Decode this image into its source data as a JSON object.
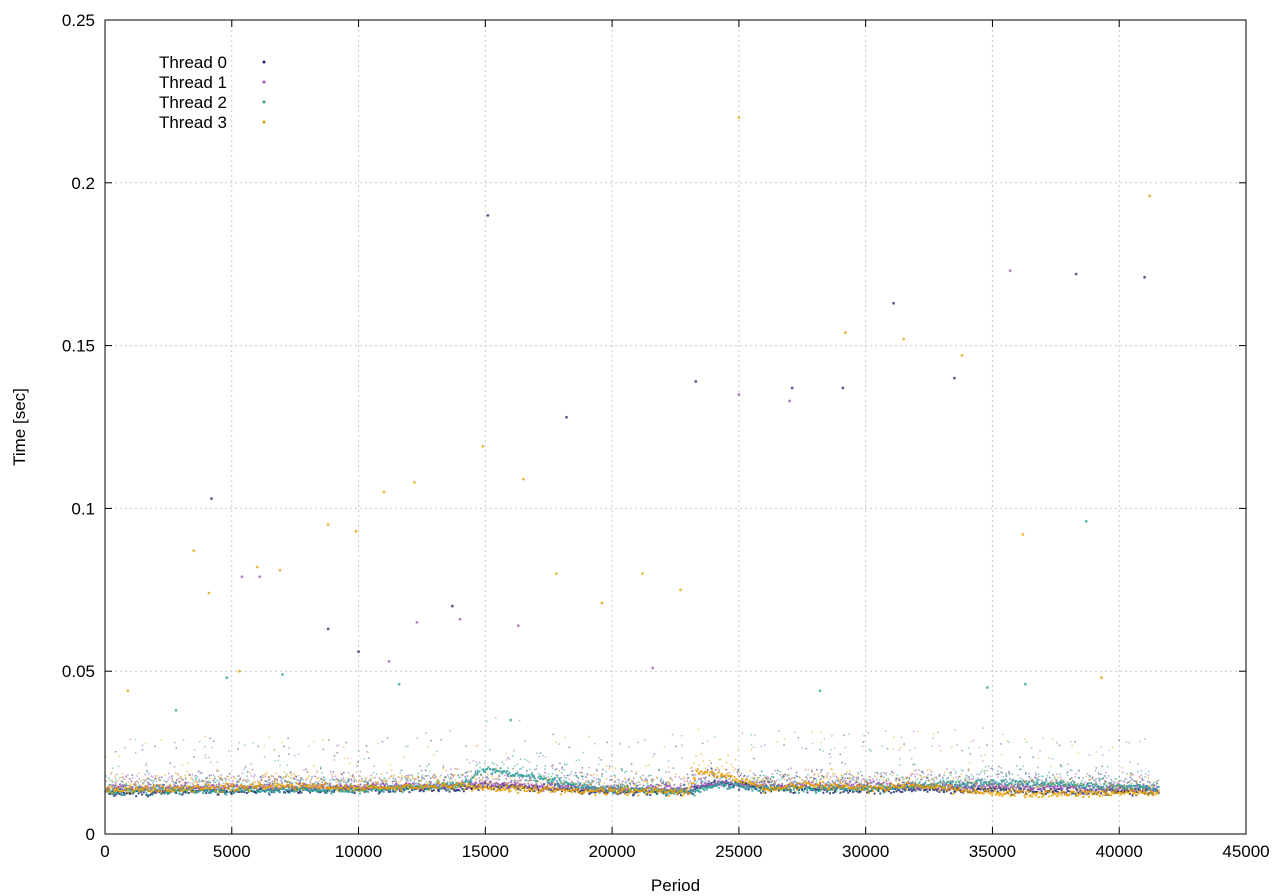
{
  "chart_data": {
    "type": "scatter",
    "title": "",
    "xlabel": "Period",
    "ylabel": "Time [sec]",
    "xlim": [
      0,
      45000
    ],
    "ylim": [
      0,
      0.25
    ],
    "x_ticks": [
      0,
      5000,
      10000,
      15000,
      20000,
      25000,
      30000,
      35000,
      40000,
      45000
    ],
    "y_ticks": [
      0,
      0.05,
      0.1,
      0.15,
      0.2,
      0.25
    ],
    "x_tick_labels": [
      "0",
      "5000",
      "10000",
      "15000",
      "20000",
      "25000",
      "30000",
      "35000",
      "40000",
      "45000"
    ],
    "y_tick_labels": [
      "0",
      "0.05",
      "0.1",
      "0.15",
      "0.2",
      "0.25"
    ],
    "grid": true,
    "legend_position": "top-left",
    "x_range_of_data": [
      0,
      41500
    ],
    "series": [
      {
        "name": "Thread 0",
        "color": "#1a2b6e",
        "typical_band": [
          [
            0,
            0.0125
          ],
          [
            5000,
            0.0135
          ],
          [
            10000,
            0.0135
          ],
          [
            14000,
            0.014
          ],
          [
            15000,
            0.015
          ],
          [
            20000,
            0.013
          ],
          [
            23000,
            0.013
          ],
          [
            24000,
            0.016
          ],
          [
            26000,
            0.014
          ],
          [
            30000,
            0.0135
          ],
          [
            35000,
            0.0135
          ],
          [
            40000,
            0.013
          ],
          [
            41500,
            0.013
          ]
        ],
        "outliers": [
          [
            4200,
            0.103
          ],
          [
            8800,
            0.063
          ],
          [
            10000,
            0.056
          ],
          [
            13700,
            0.07
          ],
          [
            15100,
            0.19
          ],
          [
            18200,
            0.128
          ],
          [
            23300,
            0.139
          ],
          [
            27100,
            0.137
          ],
          [
            29100,
            0.137
          ],
          [
            31100,
            0.163
          ],
          [
            33500,
            0.14
          ],
          [
            38300,
            0.172
          ],
          [
            41000,
            0.171
          ]
        ]
      },
      {
        "name": "Thread 1",
        "color": "#9b59b6",
        "typical_band": [
          [
            0,
            0.014
          ],
          [
            5000,
            0.0145
          ],
          [
            10000,
            0.0145
          ],
          [
            14000,
            0.015
          ],
          [
            15000,
            0.015
          ],
          [
            20000,
            0.014
          ],
          [
            23000,
            0.014
          ],
          [
            24000,
            0.0155
          ],
          [
            26000,
            0.015
          ],
          [
            30000,
            0.015
          ],
          [
            35000,
            0.0145
          ],
          [
            40000,
            0.014
          ],
          [
            41500,
            0.014
          ]
        ],
        "outliers": [
          [
            5400,
            0.079
          ],
          [
            6100,
            0.079
          ],
          [
            11200,
            0.053
          ],
          [
            12300,
            0.065
          ],
          [
            14000,
            0.066
          ],
          [
            16300,
            0.064
          ],
          [
            21600,
            0.051
          ],
          [
            25000,
            0.135
          ],
          [
            27000,
            0.133
          ],
          [
            35700,
            0.173
          ]
        ]
      },
      {
        "name": "Thread 2",
        "color": "#2aa198",
        "typical_band": [
          [
            0,
            0.013
          ],
          [
            5000,
            0.0135
          ],
          [
            10000,
            0.0135
          ],
          [
            14000,
            0.015
          ],
          [
            15000,
            0.02
          ],
          [
            17000,
            0.017
          ],
          [
            19000,
            0.014
          ],
          [
            23000,
            0.013
          ],
          [
            24000,
            0.015
          ],
          [
            26000,
            0.014
          ],
          [
            30000,
            0.014
          ],
          [
            35000,
            0.016
          ],
          [
            38000,
            0.015
          ],
          [
            41500,
            0.014
          ]
        ],
        "outliers": [
          [
            2800,
            0.038
          ],
          [
            4800,
            0.048
          ],
          [
            7000,
            0.049
          ],
          [
            11600,
            0.046
          ],
          [
            16000,
            0.035
          ],
          [
            28200,
            0.044
          ],
          [
            34800,
            0.045
          ],
          [
            36300,
            0.046
          ],
          [
            38700,
            0.096
          ]
        ]
      },
      {
        "name": "Thread 3",
        "color": "#e69f00",
        "typical_band": [
          [
            0,
            0.0135
          ],
          [
            3000,
            0.014
          ],
          [
            5000,
            0.014
          ],
          [
            7000,
            0.015
          ],
          [
            10000,
            0.014
          ],
          [
            14000,
            0.015
          ],
          [
            15000,
            0.014
          ],
          [
            20000,
            0.013
          ],
          [
            23000,
            0.013
          ],
          [
            23300,
            0.019
          ],
          [
            24500,
            0.018
          ],
          [
            26000,
            0.014
          ],
          [
            28000,
            0.015
          ],
          [
            30000,
            0.014
          ],
          [
            32000,
            0.015
          ],
          [
            35000,
            0.0125
          ],
          [
            38000,
            0.0125
          ],
          [
            41500,
            0.0125
          ]
        ],
        "outliers": [
          [
            900,
            0.044
          ],
          [
            3500,
            0.087
          ],
          [
            4100,
            0.074
          ],
          [
            5300,
            0.05
          ],
          [
            6000,
            0.082
          ],
          [
            6900,
            0.081
          ],
          [
            8800,
            0.095
          ],
          [
            9900,
            0.093
          ],
          [
            11000,
            0.105
          ],
          [
            12200,
            0.108
          ],
          [
            14900,
            0.119
          ],
          [
            16500,
            0.109
          ],
          [
            17800,
            0.08
          ],
          [
            19600,
            0.071
          ],
          [
            21200,
            0.08
          ],
          [
            22700,
            0.075
          ],
          [
            25000,
            0.22
          ],
          [
            29200,
            0.154
          ],
          [
            31500,
            0.152
          ],
          [
            33800,
            0.147
          ],
          [
            36200,
            0.092
          ],
          [
            39300,
            0.048
          ],
          [
            41200,
            0.196
          ]
        ]
      }
    ]
  }
}
